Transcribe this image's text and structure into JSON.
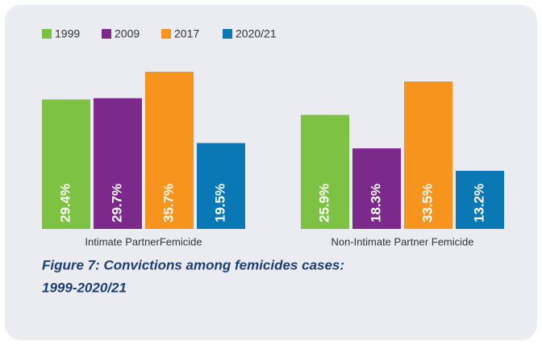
{
  "chart_data": {
    "type": "bar",
    "title": [
      "Figure 7: Convictions among femicides cases:",
      "1999-2020/21"
    ],
    "categories": [
      "Intimate PartnerFemicide",
      "Non-Intimate Partner Femicide"
    ],
    "series": [
      {
        "name": "1999",
        "color": "#7dc242",
        "values": [
          29.4,
          25.9
        ],
        "value_labels": [
          "29.4%",
          "25.9%"
        ]
      },
      {
        "name": "2009",
        "color": "#7b2a8c",
        "values": [
          29.7,
          18.3
        ],
        "value_labels": [
          "29.7%",
          "18.3%"
        ]
      },
      {
        "name": "2017",
        "color": "#f7941d",
        "values": [
          35.7,
          33.5
        ],
        "value_labels": [
          "35.7%",
          "33.5%"
        ]
      },
      {
        "name": "2020/21",
        "color": "#0a78b4",
        "values": [
          19.5,
          13.2
        ],
        "value_labels": [
          "19.5%",
          "13.2%"
        ]
      }
    ]
  }
}
